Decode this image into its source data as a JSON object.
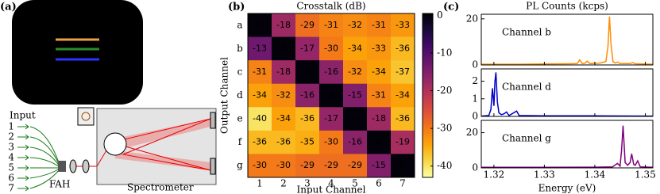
{
  "diagram": {
    "panel_label": "(a)",
    "input_label": "Input",
    "ports": [
      "1",
      "2",
      "3",
      "4",
      "5",
      "6",
      "7"
    ],
    "fah_label": "FAH",
    "spectrometer_label": "Spectrometer"
  },
  "chart_data": [
    {
      "type": "heatmap",
      "panel_label": "(b)",
      "title": "Crosstalk (dB)",
      "x_label": "Input Channel",
      "y_label": "Output Channel",
      "categories": [
        "1",
        "2",
        "3",
        "4",
        "5",
        "6",
        "7"
      ],
      "rows": [
        "a",
        "b",
        "c",
        "d",
        "e",
        "f",
        "g"
      ],
      "values": [
        [
          0,
          -18,
          -29,
          -31,
          -32,
          -31,
          -33
        ],
        [
          -13,
          0,
          -17,
          -30,
          -34,
          -33,
          -36
        ],
        [
          -31,
          -18,
          0,
          -16,
          -32,
          -34,
          -37
        ],
        [
          -34,
          -32,
          -16,
          0,
          -15,
          -31,
          -34
        ],
        [
          -40,
          -34,
          -36,
          -17,
          0,
          -18,
          -36
        ],
        [
          -36,
          -36,
          -35,
          -30,
          -16,
          0,
          -19
        ],
        [
          -30,
          -30,
          -29,
          -29,
          -29,
          -15,
          0
        ]
      ],
      "colormap": "inferno_r",
      "zlim": [
        -43,
        0.5
      ],
      "zticks": [
        0,
        -10,
        -20,
        -30,
        -40
      ]
    },
    {
      "type": "line",
      "panel_label": "(c)",
      "title": "PL Counts (kcps)",
      "x": [
        1.3175,
        1.32,
        1.325,
        1.33,
        1.335,
        1.3365,
        1.337,
        1.3375,
        1.338,
        1.3385,
        1.339,
        1.341,
        1.3422,
        1.3426,
        1.3429,
        1.3432,
        1.3436,
        1.344,
        1.3445,
        1.345,
        1.347,
        1.3475,
        1.348,
        1.3515
      ],
      "series": [
        {
          "name": "Channel b",
          "color": "#ff8c00",
          "values": [
            0.3,
            0.3,
            0.3,
            0.4,
            0.5,
            0.6,
            2.2,
            0.6,
            0.7,
            1.6,
            0.6,
            0.8,
            1.5,
            8,
            21,
            9,
            1.5,
            0.8,
            1.2,
            0.6,
            0.6,
            1.0,
            0.5,
            0.3
          ]
        }
      ],
      "xlim": [
        1.3175,
        1.3515
      ],
      "xticks": [
        1.32,
        1.33,
        1.34,
        1.35
      ],
      "ylim": [
        0,
        22
      ],
      "yticks": [
        0,
        20
      ]
    },
    {
      "type": "line",
      "x": [
        1.3175,
        1.319,
        1.3194,
        1.3197,
        1.32,
        1.3202,
        1.3204,
        1.3207,
        1.321,
        1.3215,
        1.322,
        1.3225,
        1.323,
        1.3245,
        1.325,
        1.33,
        1.34,
        1.3515
      ],
      "series": [
        {
          "name": "Channel d",
          "color": "#0000cc",
          "values": [
            0.02,
            0.05,
            0.4,
            1.6,
            0.6,
            2.0,
            2.5,
            0.8,
            0.2,
            0.1,
            0.15,
            0.25,
            0.05,
            0.3,
            0.05,
            0.03,
            0.03,
            0.02
          ]
        }
      ],
      "xlim": [
        1.3175,
        1.3515
      ],
      "xticks": [
        1.32,
        1.33,
        1.34,
        1.35
      ],
      "ylim": [
        0,
        2.7
      ],
      "yticks": [
        0,
        1,
        2
      ]
    },
    {
      "type": "line",
      "x_label": "Energy (eV)",
      "x": [
        1.3175,
        1.33,
        1.34,
        1.3435,
        1.3445,
        1.345,
        1.3453,
        1.3456,
        1.346,
        1.3465,
        1.347,
        1.3473,
        1.3477,
        1.348,
        1.3485,
        1.349,
        1.3515
      ],
      "series": [
        {
          "name": "Channel g",
          "color": "#800080",
          "values": [
            0.3,
            0.3,
            0.4,
            0.6,
            2.5,
            1,
            10,
            24,
            3,
            1.5,
            3,
            8,
            2,
            1.5,
            4,
            0.6,
            0.3
          ]
        }
      ],
      "xlim": [
        1.3175,
        1.3515
      ],
      "xticks": [
        1.32,
        1.33,
        1.34,
        1.35
      ],
      "ylim": [
        0,
        27
      ],
      "yticks": [
        0,
        20
      ]
    }
  ]
}
